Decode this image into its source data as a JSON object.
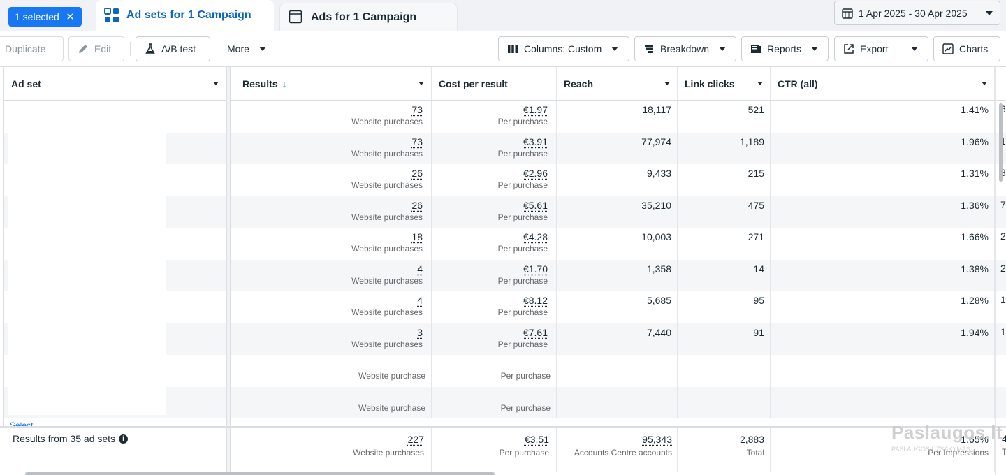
{
  "tabbar": {
    "selected_label": "1 selected",
    "tabs": [
      {
        "label": "Ad sets for 1 Campaign",
        "icon": "grid-icon",
        "active": true
      },
      {
        "label": "Ads for 1 Campaign",
        "icon": "ad-icon",
        "active": false
      }
    ],
    "date_range": "1 Apr 2025 - 30 Apr 2025"
  },
  "toolbar": {
    "duplicate": "Duplicate",
    "edit": "Edit",
    "ab_test": "A/B test",
    "more": "More",
    "columns": "Columns: Custom",
    "breakdown": "Breakdown",
    "reports": "Reports",
    "export": "Export",
    "charts": "Charts"
  },
  "columns": [
    "Ad set",
    "Results",
    "Cost per result",
    "Reach",
    "Link clicks",
    "CTR (all)"
  ],
  "rows": [
    {
      "results": "73",
      "results_sub": "Website purchases",
      "cost": "€1.97",
      "cost_sub": "Per purchase",
      "reach": "18,117",
      "clicks": "521",
      "ctr": "1.41%",
      "edge": "6"
    },
    {
      "results": "73",
      "results_sub": "Website purchases",
      "cost": "€3.91",
      "cost_sub": "Per purchase",
      "reach": "77,974",
      "clicks": "1,189",
      "ctr": "1.96%",
      "edge": "1"
    },
    {
      "results": "26",
      "results_sub": "Website purchases",
      "cost": "€2.96",
      "cost_sub": "Per purchase",
      "reach": "9,433",
      "clicks": "215",
      "ctr": "1.31%",
      "edge": "3"
    },
    {
      "results": "26",
      "results_sub": "Website purchases",
      "cost": "€5.61",
      "cost_sub": "Per purchase",
      "reach": "35,210",
      "clicks": "475",
      "ctr": "1.36%",
      "edge": "7"
    },
    {
      "results": "18",
      "results_sub": "Website purchases",
      "cost": "€4.28",
      "cost_sub": "Per purchase",
      "reach": "10,003",
      "clicks": "271",
      "ctr": "1.66%",
      "edge": "2"
    },
    {
      "results": "4",
      "results_sub": "Website purchases",
      "cost": "€1.70",
      "cost_sub": "Per purchase",
      "reach": "1,358",
      "clicks": "14",
      "ctr": "1.38%",
      "edge": "2"
    },
    {
      "results": "4",
      "results_sub": "Website purchases",
      "cost": "€8.12",
      "cost_sub": "Per purchase",
      "reach": "5,685",
      "clicks": "95",
      "ctr": "1.28%",
      "edge": "1"
    },
    {
      "results": "3",
      "results_sub": "Website purchases",
      "cost": "€7.61",
      "cost_sub": "Per purchase",
      "reach": "7,440",
      "clicks": "91",
      "ctr": "1.94%",
      "edge": "1"
    },
    {
      "results": "—",
      "results_sub": "Website purchase",
      "cost": "—",
      "cost_sub": "Per purchase",
      "reach": "—",
      "clicks": "—",
      "ctr": "—",
      "edge": ""
    },
    {
      "results": "—",
      "results_sub": "Website purchase",
      "cost": "—",
      "cost_sub": "Per purchase",
      "reach": "—",
      "clicks": "—",
      "ctr": "—",
      "edge": ""
    }
  ],
  "footer": {
    "label": "Results from 35 ad sets",
    "results": "227",
    "results_sub": "Website purchases",
    "cost": "€3.51",
    "cost_sub": "Per purchase",
    "reach": "95,343",
    "reach_sub": "Accounts Centre accounts",
    "clicks": "2,883",
    "clicks_sub": "Total",
    "ctr": "1.65%",
    "ctr_sub": "Per Impressions",
    "edge": "4",
    "edge_sub": "T"
  },
  "select_link": "Select",
  "watermark": {
    "big": "Paslaugos.lt",
    "small": "PASLAUGOS UŽSAKYMAS"
  }
}
